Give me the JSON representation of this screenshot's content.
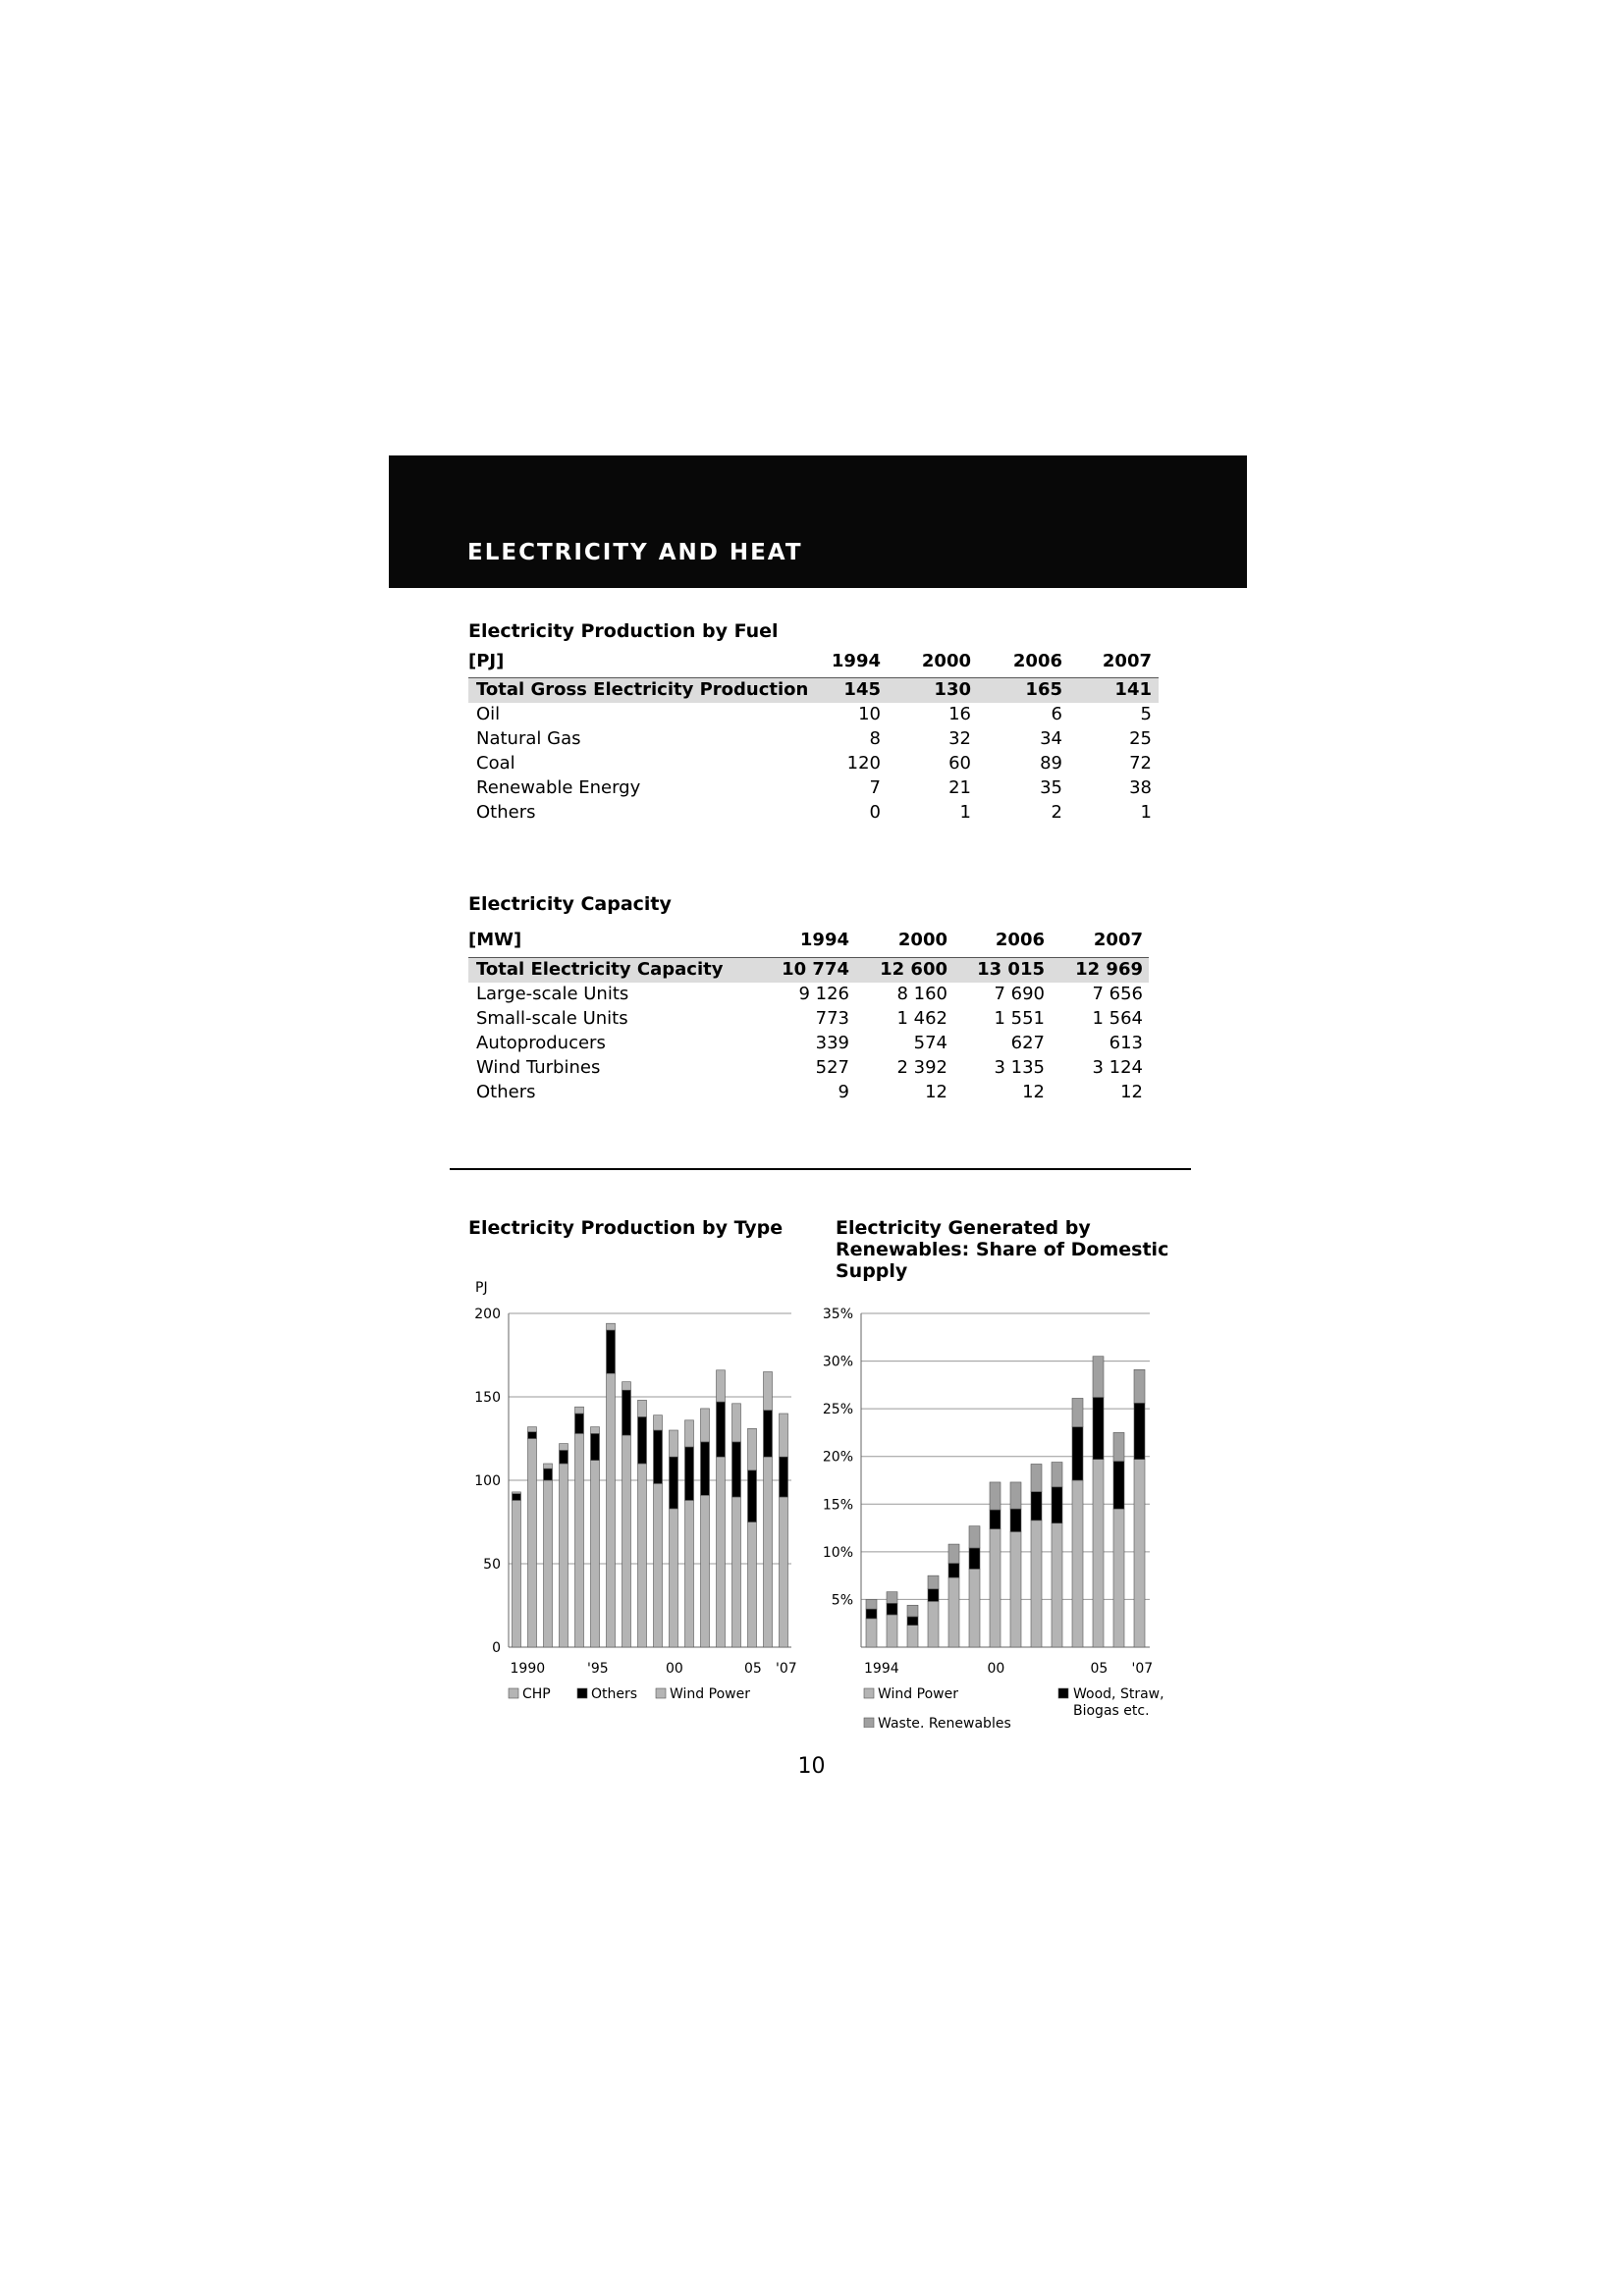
{
  "header": {
    "title": "ELECTRICITY AND HEAT"
  },
  "fuel_table": {
    "title": "Electricity Production by Fuel",
    "unit": "[PJ]",
    "years": [
      "1994",
      "2000",
      "2006",
      "2007"
    ],
    "total": {
      "label": "Total Gross Electricity Production",
      "values": [
        "145",
        "130",
        "165",
        "141"
      ]
    },
    "rows": [
      {
        "label": "Oil",
        "values": [
          "10",
          "16",
          "6",
          "5"
        ]
      },
      {
        "label": "Natural Gas",
        "values": [
          "8",
          "32",
          "34",
          "25"
        ]
      },
      {
        "label": "Coal",
        "values": [
          "120",
          "60",
          "89",
          "72"
        ]
      },
      {
        "label": "Renewable Energy",
        "values": [
          "7",
          "21",
          "35",
          "38"
        ]
      },
      {
        "label": "Others",
        "values": [
          "0",
          "1",
          "2",
          "1"
        ]
      }
    ]
  },
  "capacity_table": {
    "title": "Electricity Capacity",
    "unit": "[MW]",
    "years": [
      "1994",
      "2000",
      "2006",
      "2007"
    ],
    "total": {
      "label": "Total Electricity Capacity",
      "values": [
        "10 774",
        "12 600",
        "13 015",
        "12 969"
      ]
    },
    "rows": [
      {
        "label": "Large-scale Units",
        "values": [
          "9 126",
          "8 160",
          "7 690",
          "7 656"
        ]
      },
      {
        "label": "Small-scale Units",
        "values": [
          "773",
          "1 462",
          "1 551",
          "1 564"
        ]
      },
      {
        "label": "Autoproducers",
        "values": [
          "339",
          "574",
          "627",
          "613"
        ]
      },
      {
        "label": "Wind Turbines",
        "values": [
          "527",
          "2 392",
          "3 135",
          "3 124"
        ]
      },
      {
        "label": "Others",
        "values": [
          "9",
          "12",
          "12",
          "12"
        ]
      }
    ]
  },
  "chart_data": [
    {
      "type": "bar",
      "stacked": true,
      "title": "Electricity Production by Type",
      "ylabel": "PJ",
      "ylim": [
        0,
        200
      ],
      "yticks": [
        "0",
        "50",
        "100",
        "150",
        "200"
      ],
      "categories": [
        "1990",
        "1991",
        "1992",
        "1993",
        "1994",
        "1995",
        "1996",
        "1997",
        "1998",
        "1999",
        "2000",
        "2001",
        "2002",
        "2003",
        "2004",
        "2005",
        "2006",
        "2007"
      ],
      "tick_labels": [
        {
          "category": "1990",
          "label": "1990"
        },
        {
          "category": "1995",
          "label": "'95"
        },
        {
          "category": "2000",
          "label": "00"
        },
        {
          "category": "2005",
          "label": "05"
        },
        {
          "category": "2007",
          "label": "'07"
        }
      ],
      "series": [
        {
          "name": "CHP",
          "color": "#b4b4b4",
          "values": [
            88,
            125,
            100,
            110,
            128,
            112,
            164,
            127,
            110,
            98,
            83,
            88,
            91,
            114,
            90,
            75,
            114,
            90
          ]
        },
        {
          "name": "Others",
          "color": "#000000",
          "values": [
            4,
            4,
            7,
            8,
            12,
            16,
            26,
            27,
            28,
            32,
            31,
            32,
            32,
            33,
            33,
            31,
            28,
            24
          ]
        },
        {
          "name": "Wind Power",
          "color": "#b4b4b4",
          "values": [
            1,
            3,
            3,
            4,
            4,
            4,
            4,
            5,
            10,
            9,
            16,
            16,
            20,
            19,
            23,
            25,
            23,
            26
          ]
        }
      ],
      "legend": "bottom"
    },
    {
      "type": "bar",
      "stacked": true,
      "title": "Electricity Generated by Renewables: Share of Domestic Supply",
      "ylim": [
        0,
        35
      ],
      "yticks": [
        "5%",
        "10%",
        "15%",
        "20%",
        "25%",
        "30%",
        "35%"
      ],
      "categories": [
        "1994",
        "1995",
        "1996",
        "1997",
        "1998",
        "1999",
        "2000",
        "2001",
        "2002",
        "2003",
        "2004",
        "2005",
        "2006",
        "2007"
      ],
      "tick_labels": [
        {
          "category": "1994",
          "label": "1994"
        },
        {
          "category": "2000",
          "label": "00"
        },
        {
          "category": "2005",
          "label": "05"
        },
        {
          "category": "2007",
          "label": "'07"
        }
      ],
      "series": [
        {
          "name": "Wind Power",
          "color": "#b4b4b4",
          "values": [
            3,
            3.4,
            2.3,
            4.8,
            7.3,
            8.2,
            12.4,
            12.1,
            13.3,
            13.0,
            17.5,
            19.7,
            14.5,
            19.7
          ]
        },
        {
          "name": "Wood, Straw, Biogas etc.",
          "color": "#000000",
          "values": [
            1.0,
            1.2,
            0.9,
            1.3,
            1.5,
            2.2,
            2.0,
            2.4,
            3.0,
            3.8,
            5.6,
            6.5,
            5.0,
            5.9
          ]
        },
        {
          "name": "Waste, Renewables",
          "color": "#a0a0a0",
          "values": [
            1.0,
            1.2,
            1.2,
            1.4,
            2.0,
            2.3,
            2.9,
            2.8,
            2.9,
            2.6,
            3.0,
            4.3,
            3.0,
            3.5
          ]
        }
      ],
      "legend": "bottom"
    }
  ],
  "footer": {
    "page_number": "10"
  }
}
